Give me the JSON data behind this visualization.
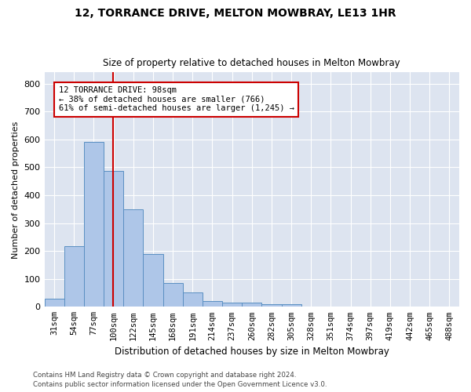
{
  "title": "12, TORRANCE DRIVE, MELTON MOWBRAY, LE13 1HR",
  "subtitle": "Size of property relative to detached houses in Melton Mowbray",
  "xlabel": "Distribution of detached houses by size in Melton Mowbray",
  "ylabel": "Number of detached properties",
  "bin_labels": [
    "31sqm",
    "54sqm",
    "77sqm",
    "100sqm",
    "122sqm",
    "145sqm",
    "168sqm",
    "191sqm",
    "214sqm",
    "237sqm",
    "260sqm",
    "282sqm",
    "305sqm",
    "328sqm",
    "351sqm",
    "374sqm",
    "397sqm",
    "419sqm",
    "442sqm",
    "465sqm",
    "488sqm"
  ],
  "bar_values": [
    30,
    218,
    590,
    488,
    350,
    190,
    85,
    52,
    20,
    15,
    15,
    8,
    8,
    0,
    0,
    0,
    0,
    0,
    0,
    0,
    0
  ],
  "bar_color": "#aec6e8",
  "bar_edge_color": "#5a8fc2",
  "vline_x": 2.98,
  "vline_color": "#cc0000",
  "annotation_text": "12 TORRANCE DRIVE: 98sqm\n← 38% of detached houses are smaller (766)\n61% of semi-detached houses are larger (1,245) →",
  "annotation_box_color": "#ffffff",
  "annotation_box_edge_color": "#cc0000",
  "ylim": [
    0,
    840
  ],
  "yticks": [
    0,
    100,
    200,
    300,
    400,
    500,
    600,
    700,
    800
  ],
  "background_color": "#dde4f0",
  "grid_color": "#ffffff",
  "footer_line1": "Contains HM Land Registry data © Crown copyright and database right 2024.",
  "footer_line2": "Contains public sector information licensed under the Open Government Licence v3.0."
}
